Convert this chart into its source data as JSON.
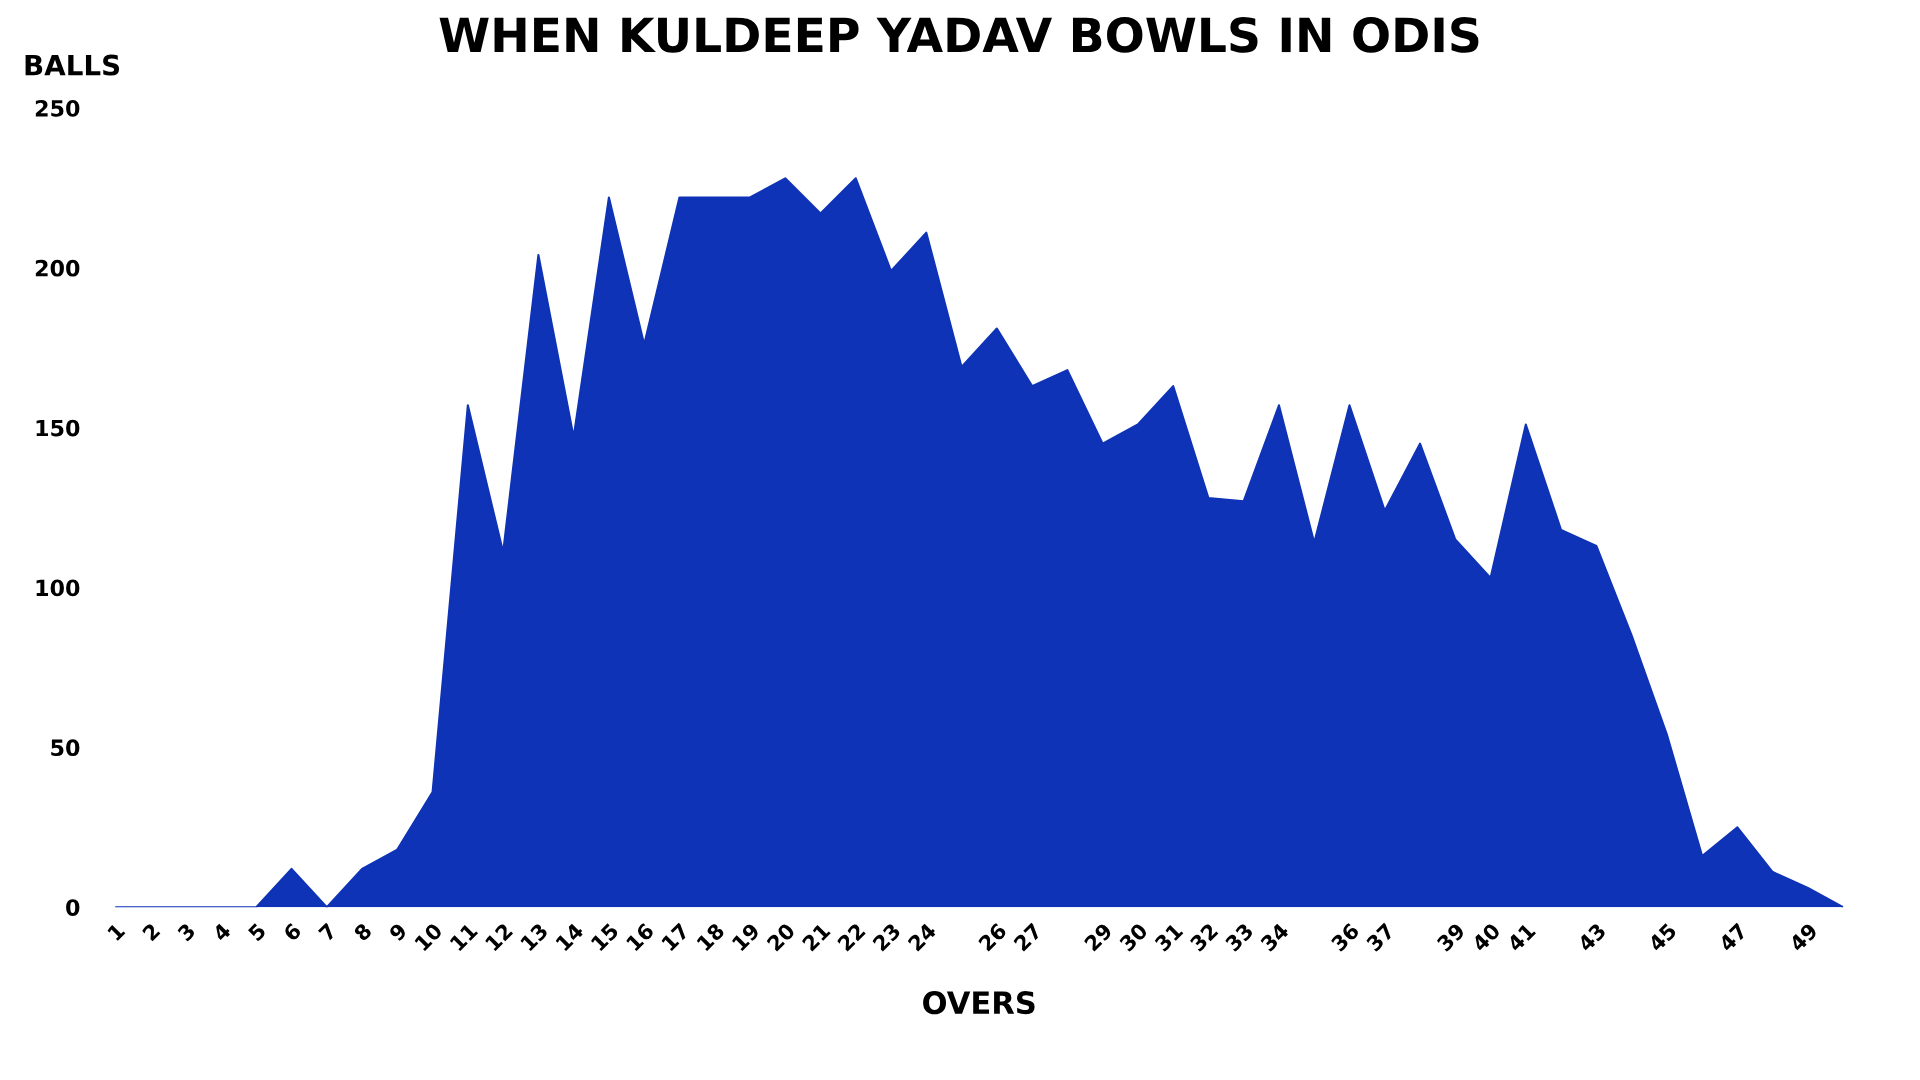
{
  "chart_data": {
    "type": "area",
    "title": "WHEN KULDEEP YADAV BOWLS IN ODIS",
    "xlabel": "OVERS",
    "ylabel": "BALLS",
    "categories": [
      "1",
      "2",
      "3",
      "4",
      "5",
      "6",
      "7",
      "8",
      "9",
      "10",
      "11",
      "12",
      "13",
      "14",
      "15",
      "16",
      "17",
      "18",
      "19",
      "20",
      "21",
      "22",
      "23",
      "24",
      null,
      "26",
      "27",
      null,
      "29",
      "30",
      "31",
      "32",
      "33",
      "34",
      null,
      "36",
      "37",
      null,
      "39",
      "40",
      "41",
      null,
      "43",
      null,
      "45",
      null,
      "47",
      null,
      "49",
      null
    ],
    "series": [
      {
        "color": "#0e33b6",
        "values": [
          0,
          0,
          0,
          0,
          0,
          12,
          0,
          12,
          18,
          36,
          157,
          111,
          204,
          147,
          222,
          176,
          222,
          222,
          222,
          228,
          217,
          228,
          199,
          211,
          169,
          181,
          163,
          168,
          145,
          151,
          163,
          128,
          127,
          157,
          114,
          157,
          124,
          145,
          115,
          103,
          151,
          118,
          113,
          85,
          54,
          16,
          25,
          11,
          6,
          0
        ]
      }
    ],
    "ylim": [
      0,
      250
    ],
    "yticks": [
      0,
      50,
      100,
      150,
      200,
      250
    ],
    "grid": false,
    "legend": false
  }
}
